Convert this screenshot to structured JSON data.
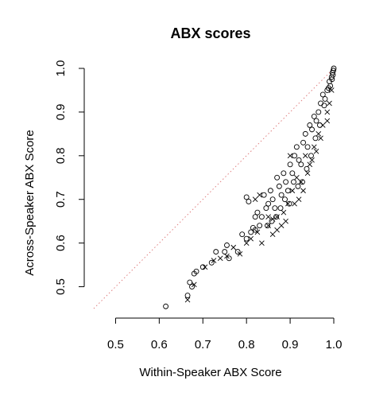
{
  "chart_data": {
    "type": "scatter",
    "title": "ABX scores",
    "xlabel": "Within-Speaker ABX Score",
    "ylabel": "Across-Speaker ABX Score",
    "xlim": [
      0.45,
      1.0
    ],
    "ylim": [
      0.45,
      1.0
    ],
    "xticks": [
      "0.5",
      "0.6",
      "0.7",
      "0.8",
      "0.9",
      "1.0"
    ],
    "yticks": [
      "0.5",
      "0.6",
      "0.7",
      "0.8",
      "0.9",
      "1.0"
    ],
    "grid": false,
    "legend": "none",
    "reference_line": {
      "style": "dotted",
      "color": "#e08080",
      "from": [
        0.45,
        0.45
      ],
      "to": [
        1.0,
        1.0
      ]
    },
    "series": [
      {
        "marker": "circle",
        "points": [
          [
            0.615,
            0.455
          ],
          [
            0.665,
            0.48
          ],
          [
            0.67,
            0.51
          ],
          [
            0.675,
            0.5
          ],
          [
            0.68,
            0.53
          ],
          [
            0.685,
            0.535
          ],
          [
            0.7,
            0.545
          ],
          [
            0.72,
            0.555
          ],
          [
            0.73,
            0.58
          ],
          [
            0.75,
            0.58
          ],
          [
            0.755,
            0.595
          ],
          [
            0.76,
            0.565
          ],
          [
            0.78,
            0.58
          ],
          [
            0.79,
            0.62
          ],
          [
            0.8,
            0.61
          ],
          [
            0.81,
            0.625
          ],
          [
            0.815,
            0.635
          ],
          [
            0.82,
            0.63
          ],
          [
            0.8,
            0.705
          ],
          [
            0.805,
            0.695
          ],
          [
            0.82,
            0.66
          ],
          [
            0.825,
            0.67
          ],
          [
            0.83,
            0.64
          ],
          [
            0.835,
            0.66
          ],
          [
            0.84,
            0.71
          ],
          [
            0.845,
            0.68
          ],
          [
            0.85,
            0.69
          ],
          [
            0.855,
            0.72
          ],
          [
            0.86,
            0.7
          ],
          [
            0.865,
            0.68
          ],
          [
            0.87,
            0.75
          ],
          [
            0.875,
            0.73
          ],
          [
            0.88,
            0.71
          ],
          [
            0.885,
            0.76
          ],
          [
            0.89,
            0.74
          ],
          [
            0.895,
            0.72
          ],
          [
            0.9,
            0.78
          ],
          [
            0.905,
            0.76
          ],
          [
            0.91,
            0.8
          ],
          [
            0.915,
            0.82
          ],
          [
            0.92,
            0.79
          ],
          [
            0.925,
            0.78
          ],
          [
            0.93,
            0.83
          ],
          [
            0.935,
            0.85
          ],
          [
            0.94,
            0.82
          ],
          [
            0.945,
            0.87
          ],
          [
            0.95,
            0.86
          ],
          [
            0.955,
            0.89
          ],
          [
            0.96,
            0.88
          ],
          [
            0.965,
            0.9
          ],
          [
            0.97,
            0.92
          ],
          [
            0.975,
            0.94
          ],
          [
            0.98,
            0.93
          ],
          [
            0.985,
            0.95
          ],
          [
            0.99,
            0.97
          ],
          [
            0.992,
            0.96
          ],
          [
            0.995,
            0.98
          ],
          [
            0.997,
            0.99
          ],
          [
            0.998,
            0.985
          ],
          [
            1.0,
            1.0
          ],
          [
            0.999,
            0.995
          ],
          [
            0.996,
            0.975
          ],
          [
            0.988,
            0.955
          ],
          [
            0.978,
            0.915
          ],
          [
            0.968,
            0.87
          ],
          [
            0.958,
            0.84
          ],
          [
            0.948,
            0.8
          ],
          [
            0.938,
            0.77
          ],
          [
            0.928,
            0.74
          ],
          [
            0.918,
            0.73
          ],
          [
            0.908,
            0.74
          ],
          [
            0.898,
            0.69
          ],
          [
            0.888,
            0.7
          ],
          [
            0.878,
            0.68
          ],
          [
            0.868,
            0.66
          ],
          [
            0.858,
            0.65
          ],
          [
            0.848,
            0.64
          ]
        ]
      },
      {
        "marker": "cross",
        "points": [
          [
            0.665,
            0.47
          ],
          [
            0.68,
            0.505
          ],
          [
            0.705,
            0.545
          ],
          [
            0.725,
            0.56
          ],
          [
            0.74,
            0.565
          ],
          [
            0.755,
            0.57
          ],
          [
            0.77,
            0.59
          ],
          [
            0.785,
            0.575
          ],
          [
            0.8,
            0.6
          ],
          [
            0.81,
            0.61
          ],
          [
            0.825,
            0.625
          ],
          [
            0.835,
            0.6
          ],
          [
            0.85,
            0.64
          ],
          [
            0.86,
            0.655
          ],
          [
            0.87,
            0.66
          ],
          [
            0.885,
            0.67
          ],
          [
            0.895,
            0.69
          ],
          [
            0.905,
            0.72
          ],
          [
            0.915,
            0.75
          ],
          [
            0.925,
            0.74
          ],
          [
            0.935,
            0.8
          ],
          [
            0.945,
            0.78
          ],
          [
            0.955,
            0.82
          ],
          [
            0.965,
            0.85
          ],
          [
            0.975,
            0.87
          ],
          [
            0.985,
            0.9
          ],
          [
            0.99,
            0.92
          ],
          [
            0.995,
            0.95
          ],
          [
            0.985,
            0.88
          ],
          [
            0.97,
            0.84
          ],
          [
            0.96,
            0.81
          ],
          [
            0.95,
            0.79
          ],
          [
            0.94,
            0.76
          ],
          [
            0.93,
            0.72
          ],
          [
            0.92,
            0.7
          ],
          [
            0.91,
            0.69
          ],
          [
            0.89,
            0.65
          ],
          [
            0.88,
            0.64
          ],
          [
            0.87,
            0.63
          ],
          [
            0.86,
            0.62
          ],
          [
            0.82,
            0.7
          ],
          [
            0.83,
            0.71
          ],
          [
            0.9,
            0.8
          ],
          [
            0.85,
            0.66
          ]
        ]
      }
    ]
  }
}
